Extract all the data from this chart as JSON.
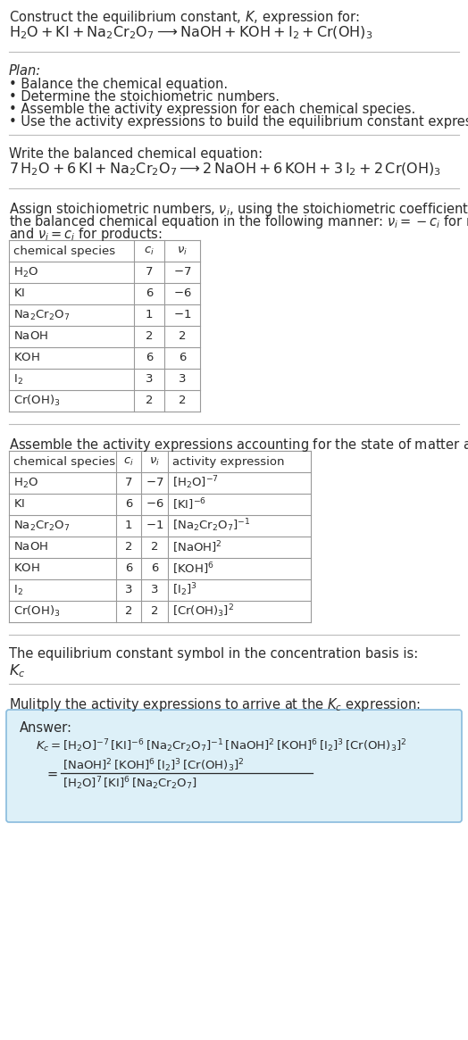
{
  "bg_color": "#ffffff",
  "text_color": "#2a2a2a",
  "title_line1": "Construct the equilibrium constant, $K$, expression for:",
  "plan_header": "Plan:",
  "plan_items": [
    "Balance the chemical equation.",
    "Determine the stoichiometric numbers.",
    "Assemble the activity expression for each chemical species.",
    "Use the activity expressions to build the equilibrium constant expression."
  ],
  "balanced_eq_header": "Write the balanced chemical equation:",
  "stoich_header_l1": "Assign stoichiometric numbers, $\\nu_i$, using the stoichiometric coefficients, $c_i$, from",
  "stoich_header_l2": "the balanced chemical equation in the following manner: $\\nu_i = -c_i$ for reactants",
  "stoich_header_l3": "and $\\nu_i = c_i$ for products:",
  "table1_col_headers": [
    "chemical species",
    "$c_i$",
    "$\\nu_i$"
  ],
  "table1_rows": [
    [
      "$\\mathrm{H_2O}$",
      "7",
      "$-7$"
    ],
    [
      "$\\mathrm{KI}$",
      "6",
      "$-6$"
    ],
    [
      "$\\mathrm{Na_2Cr_2O_7}$",
      "1",
      "$-1$"
    ],
    [
      "$\\mathrm{NaOH}$",
      "2",
      "2"
    ],
    [
      "$\\mathrm{KOH}$",
      "6",
      "6"
    ],
    [
      "$\\mathrm{I_2}$",
      "3",
      "3"
    ],
    [
      "$\\mathrm{Cr(OH)_3}$",
      "2",
      "2"
    ]
  ],
  "activity_header": "Assemble the activity expressions accounting for the state of matter and $\\nu_i$:",
  "table2_col_headers": [
    "chemical species",
    "$c_i$",
    "$\\nu_i$",
    "activity expression"
  ],
  "table2_rows": [
    [
      "$\\mathrm{H_2O}$",
      "7",
      "$-7$",
      "$[\\mathrm{H_2O}]^{-7}$"
    ],
    [
      "$\\mathrm{KI}$",
      "6",
      "$-6$",
      "$[\\mathrm{KI}]^{-6}$"
    ],
    [
      "$\\mathrm{Na_2Cr_2O_7}$",
      "1",
      "$-1$",
      "$[\\mathrm{Na_2Cr_2O_7}]^{-1}$"
    ],
    [
      "$\\mathrm{NaOH}$",
      "2",
      "2",
      "$[\\mathrm{NaOH}]^{2}$"
    ],
    [
      "$\\mathrm{KOH}$",
      "6",
      "6",
      "$[\\mathrm{KOH}]^{6}$"
    ],
    [
      "$\\mathrm{I_2}$",
      "3",
      "3",
      "$[\\mathrm{I_2}]^{3}$"
    ],
    [
      "$\\mathrm{Cr(OH)_3}$",
      "2",
      "2",
      "$[\\mathrm{Cr(OH)_3}]^{2}$"
    ]
  ],
  "kc_header": "The equilibrium constant symbol in the concentration basis is:",
  "kc_symbol": "$K_c$",
  "multiply_header": "Mulitply the activity expressions to arrive at the $K_c$ expression:",
  "answer_label": "Answer:",
  "kc_line1": "$K_c = [\\mathrm{H_2O}]^{-7}\\,[\\mathrm{KI}]^{-6}\\,[\\mathrm{Na_2Cr_2O_7}]^{-1}\\,[\\mathrm{NaOH}]^{2}\\,[\\mathrm{KOH}]^{6}\\,[\\mathrm{I_2}]^{3}\\,[\\mathrm{Cr(OH)_3}]^{2}$",
  "kc_numerator": "$[\\mathrm{NaOH}]^{2}\\,[\\mathrm{KOH}]^{6}\\,[\\mathrm{I_2}]^{3}\\,[\\mathrm{Cr(OH)_3}]^{2}$",
  "kc_denominator": "$[\\mathrm{H_2O}]^{7}\\,[\\mathrm{KI}]^{6}\\,[\\mathrm{Na_2Cr_2O_7}]$",
  "answer_box_color": "#ddf0f8",
  "answer_box_border": "#88bbdd",
  "divider_color": "#bbbbbb",
  "table_line_color": "#999999"
}
